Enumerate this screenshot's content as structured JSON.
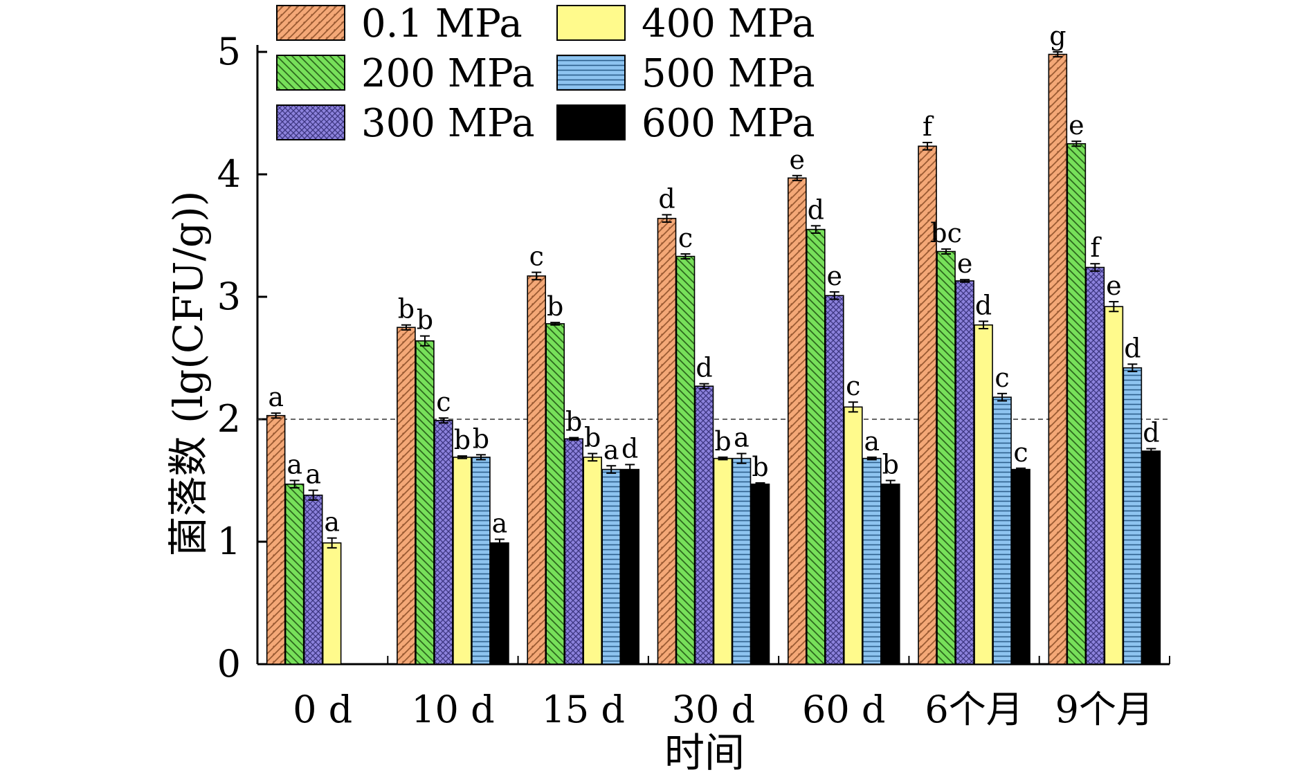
{
  "chart_data": {
    "type": "bar",
    "xlabel": "时间",
    "ylabel": "菌落数 (lg(CFU/g))",
    "ylim": [
      0,
      5
    ],
    "yticks": [
      0,
      1,
      2,
      3,
      4,
      5
    ],
    "reference_line": 2,
    "categories": [
      "0 d",
      "10 d",
      "15 d",
      "30 d",
      "60 d",
      "6个月",
      "9个月"
    ],
    "series": [
      {
        "name": "0.1 MPa",
        "color": "#f4a877",
        "pattern": "diagonal-up",
        "values": [
          2.03,
          2.75,
          3.17,
          3.64,
          3.97,
          4.23,
          4.98
        ],
        "errors": [
          0.02,
          0.02,
          0.03,
          0.03,
          0.02,
          0.03,
          0.02
        ],
        "letters": [
          "a",
          "b",
          "c",
          "d",
          "e",
          "f",
          "g"
        ]
      },
      {
        "name": "200 MPa",
        "color": "#77e05a",
        "pattern": "diagonal-down",
        "values": [
          1.47,
          2.64,
          2.78,
          3.33,
          3.55,
          3.37,
          4.25
        ],
        "errors": [
          0.03,
          0.04,
          0.01,
          0.02,
          0.03,
          0.02,
          0.02
        ],
        "letters": [
          "a",
          "b",
          "b",
          "c",
          "d",
          "bc",
          "e"
        ]
      },
      {
        "name": "300 MPa",
        "color": "#8c82dc",
        "pattern": "crosshatch",
        "values": [
          1.38,
          1.99,
          1.84,
          2.27,
          3.01,
          3.13,
          3.24
        ],
        "errors": [
          0.04,
          0.02,
          0.01,
          0.02,
          0.03,
          0.01,
          0.03
        ],
        "letters": [
          "a",
          "c",
          "b",
          "d",
          "e",
          "e",
          "f"
        ]
      },
      {
        "name": "400 MPa",
        "color": "#fffa8c",
        "pattern": "solid",
        "values": [
          0.99,
          1.69,
          1.69,
          1.68,
          2.1,
          2.77,
          2.92
        ],
        "errors": [
          0.04,
          0.01,
          0.03,
          0.01,
          0.04,
          0.03,
          0.04
        ],
        "letters": [
          "a",
          "b",
          "b",
          "b",
          "c",
          "d",
          "e"
        ]
      },
      {
        "name": "500 MPa",
        "color": "#8ec4f0",
        "pattern": "horizontal",
        "values": [
          null,
          1.69,
          1.59,
          1.68,
          1.68,
          2.18,
          2.42
        ],
        "errors": [
          null,
          0.02,
          0.03,
          0.04,
          0.01,
          0.03,
          0.03
        ],
        "letters": [
          "",
          "b",
          "a",
          "a",
          "a",
          "c",
          "d"
        ]
      },
      {
        "name": "600 MPa",
        "color": "#000000",
        "pattern": "solid",
        "values": [
          null,
          0.99,
          1.59,
          1.47,
          1.47,
          1.59,
          1.74
        ],
        "errors": [
          null,
          0.03,
          0.04,
          0.01,
          0.03,
          0.01,
          0.02
        ],
        "letters": [
          "",
          "a",
          "d",
          "b",
          "b",
          "c",
          "d"
        ]
      }
    ]
  }
}
